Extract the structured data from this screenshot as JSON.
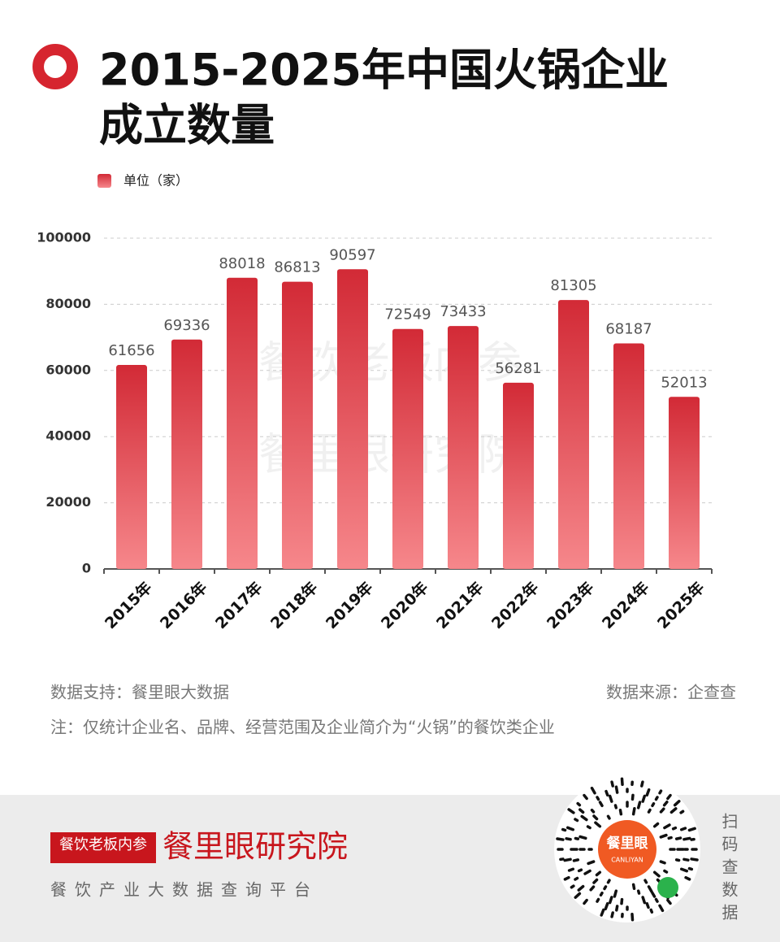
{
  "chart_data": {
    "type": "bar",
    "title_lines": [
      "2015-2025年中国火锅企业",
      "成立数量"
    ],
    "legend": "单位（家）",
    "categories": [
      "2015年",
      "2016年",
      "2017年",
      "2018年",
      "2019年",
      "2020年",
      "2021年",
      "2022年",
      "2023年",
      "2024年",
      "2025年"
    ],
    "values": [
      61656,
      69336,
      88018,
      86813,
      90597,
      72549,
      73433,
      56281,
      81305,
      68187,
      52013
    ],
    "gradient": [
      "#d22a36",
      "#f6878b"
    ],
    "ylim": [
      0,
      100000
    ],
    "yticks": [
      0,
      20000,
      40000,
      60000,
      80000,
      100000
    ],
    "grid": true,
    "watermarks": [
      "餐饮老板内参",
      "餐里眼研究院"
    ],
    "source_left": "数据支持：餐里眼大数据",
    "source_right": "数据来源：企查查",
    "note": "注：仅统计企业名、品牌、经营范围及企业简介为“火锅”的餐饮类企业"
  },
  "footer": {
    "logo": "餐饮老板内参",
    "brand": "餐里眼研究院",
    "slogan": "餐饮产业大数据查询平台",
    "qr_name": "餐里眼",
    "qr_sub": "CANLIYAN",
    "scan": "扫码查数据"
  }
}
